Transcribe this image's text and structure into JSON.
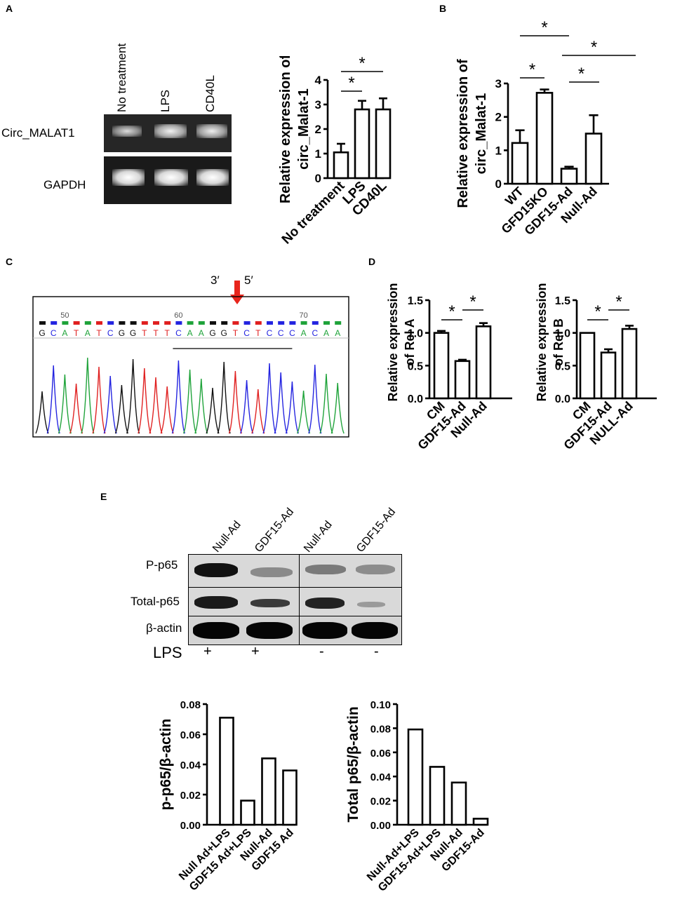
{
  "panels": {
    "A": {
      "letter": "A",
      "gel": {
        "columns": [
          "No treatment",
          "LPS",
          "CD40L"
        ],
        "rows": [
          "Circ_MALAT1",
          "GAPDH"
        ]
      }
    },
    "B": {
      "letter": "B"
    },
    "C": {
      "letter": "C",
      "arrow_left": "3′",
      "arrow_right": "5′",
      "seq_numbers": [
        "50",
        "60",
        "70"
      ],
      "sequence": "GCATATCGGTTTCAAGGTCTCCCACAA"
    },
    "D": {
      "letter": "D"
    },
    "E": {
      "letter": "E",
      "lanes": [
        "Null-Ad",
        "GDF15-Ad",
        "Null-Ad",
        "GDF15-Ad"
      ],
      "rows": [
        "P-p65",
        "Total-p65",
        "β-actin"
      ],
      "lps_label": "LPS",
      "lps_signs": [
        "+",
        "+",
        "-",
        "-"
      ]
    }
  },
  "chart_data": [
    {
      "id": "A-bar",
      "type": "bar",
      "categories": [
        "No treatment",
        "LPS",
        "CD40L"
      ],
      "values": [
        1.05,
        2.8,
        2.8
      ],
      "errors": [
        0.35,
        0.35,
        0.45
      ],
      "ylabel": "Relative expression of circ_Malat-1",
      "ylim": [
        0,
        4
      ],
      "yticks": [
        "0",
        "1",
        "2",
        "3",
        "4"
      ],
      "significance": [
        "*",
        "*"
      ]
    },
    {
      "id": "B-bar",
      "type": "bar",
      "categories": [
        "WT",
        "GFD15KO",
        "GDF15-Ad",
        "Null-Ad"
      ],
      "values": [
        1.22,
        2.72,
        0.45,
        1.5
      ],
      "errors": [
        0.38,
        0.1,
        0.06,
        0.55
      ],
      "ylabel": "Relative expression of circ_Malat-1",
      "ylim": [
        0,
        3
      ],
      "yticks": [
        "0",
        "1",
        "2",
        "3"
      ],
      "significance": [
        "*",
        "*",
        "*",
        "*"
      ]
    },
    {
      "id": "D1-bar",
      "type": "bar",
      "categories": [
        "CM",
        "GDF15-Ad",
        "Null-Ad"
      ],
      "values": [
        1.0,
        0.57,
        1.1
      ],
      "errors": [
        0.03,
        0.02,
        0.05
      ],
      "ylabel": "Relative expression of Rel A",
      "ylim": [
        0,
        1.5
      ],
      "yticks": [
        "0.0",
        "0.5",
        "1.0",
        "1.5"
      ],
      "significance": [
        "*",
        "*"
      ]
    },
    {
      "id": "D2-bar",
      "type": "bar",
      "categories": [
        "CM",
        "GDF15-Ad",
        "NULL-Ad"
      ],
      "values": [
        1.0,
        0.7,
        1.06
      ],
      "errors": [
        0.0,
        0.05,
        0.05
      ],
      "ylabel": "Relative expression of Rel B",
      "ylim": [
        0,
        1.5
      ],
      "yticks": [
        "0.0",
        "0.5",
        "1.0",
        "1.5"
      ],
      "significance": [
        "*",
        "*"
      ]
    },
    {
      "id": "E1-bar",
      "type": "bar",
      "categories": [
        "Null Ad+LPS",
        "GDF15 Ad+LPS",
        "Null-Ad",
        "GDF15 Ad"
      ],
      "values": [
        0.071,
        0.016,
        0.044,
        0.036
      ],
      "ylabel": "p-p65/β-actin",
      "ylim": [
        0,
        0.08
      ],
      "yticks": [
        "0.00",
        "0.02",
        "0.04",
        "0.06",
        "0.08"
      ]
    },
    {
      "id": "E2-bar",
      "type": "bar",
      "categories": [
        "Null-Ad+LPS",
        "GDF15-Ad+LPS",
        "Null-Ad",
        "GDF15-Ad"
      ],
      "values": [
        0.079,
        0.048,
        0.035,
        0.005
      ],
      "ylabel": "Total p65/β-actin",
      "ylim": [
        0,
        0.1
      ],
      "yticks": [
        "0.00",
        "0.02",
        "0.04",
        "0.06",
        "0.08",
        "0.10"
      ]
    }
  ]
}
